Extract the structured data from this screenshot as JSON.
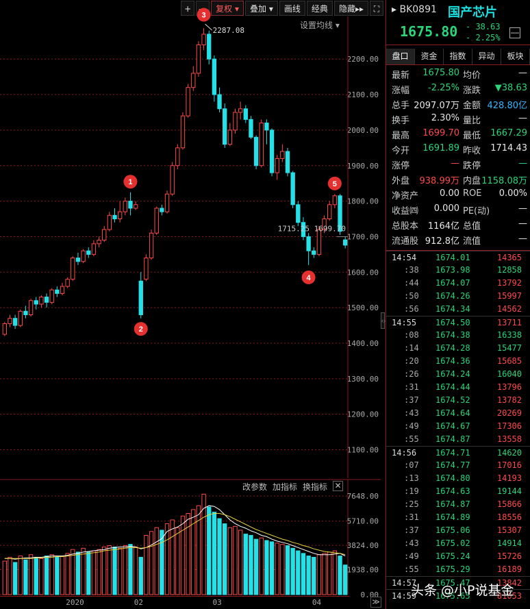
{
  "toolbar": {
    "plus": "+",
    "minus": "—",
    "fuquan": "复权",
    "diejia": "叠加",
    "huaxian": "画线",
    "jingdian": "经典",
    "yincang": "隐藏",
    "fullscreen": "⛶"
  },
  "setup_ma": "设置均线",
  "indicator_bar": {
    "params": "改参数",
    "add": "加指标",
    "switch": "换指标",
    "close": "✕"
  },
  "scroll_btn": "≫",
  "watermark": "头条 @小P说基金",
  "quote": {
    "code": "BK0891",
    "name": "国产芯片",
    "price": "1675.80",
    "change": "- 38.63",
    "change_pct": "- 2.25%",
    "minimize": "—",
    "tabs": [
      "盘口",
      "资金",
      "指数",
      "异动",
      "板块"
    ],
    "stats": [
      {
        "l1": "最新",
        "v1": "1675.80",
        "c1": "green",
        "l2": "均价",
        "v2": "—",
        "c2": "white"
      },
      {
        "l1": "涨幅",
        "v1": "-2.25%",
        "c1": "green",
        "l2": "涨跌",
        "v2": "▼38.63",
        "c2": "green"
      },
      {
        "l1": "总手",
        "v1": "2097.07万",
        "c1": "white",
        "l2": "金额",
        "v2": "428.80亿",
        "c2": "cyan"
      },
      {
        "l1": "换手",
        "v1": "2.30%",
        "c1": "white",
        "l2": "量比",
        "v2": "—",
        "c2": "white"
      },
      {
        "l1": "最高",
        "v1": "1699.70",
        "c1": "red",
        "l2": "最低",
        "v2": "1667.29",
        "c2": "green"
      },
      {
        "l1": "今开",
        "v1": "1691.89",
        "c1": "green",
        "l2": "昨收",
        "v2": "1714.43",
        "c2": "white"
      },
      {
        "l1": "涨停",
        "v1": "—",
        "c1": "red",
        "l2": "跌停",
        "v2": "—",
        "c2": "green"
      },
      {
        "l1": "外盘",
        "v1": "938.99万",
        "c1": "red",
        "l2": "内盘",
        "v2": "1158.08万",
        "c2": "green"
      },
      {
        "l1": "净资产",
        "v1": "0.00",
        "c1": "white",
        "l2": "ROE",
        "v2": "0.00%",
        "c2": "white"
      },
      {
        "l1": "收益㈣",
        "v1": "0.000",
        "c1": "white",
        "l2": "PE(动)",
        "v2": "—",
        "c2": "white"
      },
      {
        "l1": "总股本",
        "v1": "1164亿",
        "c1": "white",
        "l2": "总值",
        "v2": "—",
        "c2": "white"
      },
      {
        "l1": "流通股",
        "v1": "912.8亿",
        "c1": "white",
        "l2": "流值",
        "v2": "—",
        "c2": "white"
      }
    ],
    "ticks": [
      {
        "time": "14:54",
        "price": "1674.01",
        "vol": "14365",
        "c": "red",
        "minute": true
      },
      {
        "time": ":38",
        "price": "1673.98",
        "vol": "12858",
        "c": "green"
      },
      {
        "time": ":44",
        "price": "1674.07",
        "vol": "13792",
        "c": "red"
      },
      {
        "time": ":50",
        "price": "1674.26",
        "vol": "15997",
        "c": "red"
      },
      {
        "time": ":56",
        "price": "1674.34",
        "vol": "14562",
        "c": "red"
      },
      {
        "time": "14:55",
        "price": "1674.50",
        "vol": "13711",
        "c": "red",
        "minute": true
      },
      {
        "time": ":08",
        "price": "1674.38",
        "vol": "16338",
        "c": "green"
      },
      {
        "time": ":14",
        "price": "1674.28",
        "vol": "15477",
        "c": "green"
      },
      {
        "time": ":20",
        "price": "1674.36",
        "vol": "15685",
        "c": "red"
      },
      {
        "time": ":26",
        "price": "1674.24",
        "vol": "16040",
        "c": "green"
      },
      {
        "time": ":31",
        "price": "1674.44",
        "vol": "13796",
        "c": "red"
      },
      {
        "time": ":37",
        "price": "1674.52",
        "vol": "13782",
        "c": "red"
      },
      {
        "time": ":43",
        "price": "1674.64",
        "vol": "20269",
        "c": "red"
      },
      {
        "time": ":49",
        "price": "1674.67",
        "vol": "17306",
        "c": "red"
      },
      {
        "time": ":55",
        "price": "1674.87",
        "vol": "13558",
        "c": "red"
      },
      {
        "time": "14:56",
        "price": "1674.71",
        "vol": "14620",
        "c": "green",
        "minute": true
      },
      {
        "time": ":07",
        "price": "1674.77",
        "vol": "17016",
        "c": "red"
      },
      {
        "time": ":13",
        "price": "1674.80",
        "vol": "14193",
        "c": "red"
      },
      {
        "time": ":19",
        "price": "1674.63",
        "vol": "19144",
        "c": "green"
      },
      {
        "time": ":25",
        "price": "1674.87",
        "vol": "15866",
        "c": "red"
      },
      {
        "time": ":31",
        "price": "1674.89",
        "vol": "18556",
        "c": "red"
      },
      {
        "time": ":37",
        "price": "1675.06",
        "vol": "15307",
        "c": "red"
      },
      {
        "time": ":43",
        "price": "1675.02",
        "vol": "14914",
        "c": "green"
      },
      {
        "time": ":49",
        "price": "1675.24",
        "vol": "15726",
        "c": "red"
      },
      {
        "time": ":55",
        "price": "1675.29",
        "vol": "16189",
        "c": "red"
      },
      {
        "time": "14:57",
        "price": "1675.47",
        "vol": "13842",
        "c": "red",
        "minute": true
      },
      {
        "time": "14:59",
        "price": "1675.65",
        "vol": "81053",
        "c": "red",
        "minute": true
      }
    ]
  },
  "chart_data": {
    "type": "candlestick",
    "y_ticks": [
      2200,
      2100,
      2000,
      1900,
      1800,
      1700,
      1600,
      1500,
      1400,
      1300,
      1200,
      1100
    ],
    "y_tick_labels": [
      "2200.00",
      "2100.00",
      "2000.00",
      "1900.00",
      "1800.00",
      "1700.00",
      "1600.00",
      "1500.00",
      "1400.00",
      "1300.00",
      "1200.00",
      "1100.00"
    ],
    "ylim": [
      1020,
      2320
    ],
    "x_labels": [
      "2020",
      "02",
      "03",
      "04"
    ],
    "x_label_index": [
      13,
      26,
      41,
      60
    ],
    "high_label": "2287.08",
    "high_value": 2287.08,
    "high_index": 38,
    "crosshair_text": "1715.25 1699.70",
    "crosshair_value": 1715.25,
    "markers": [
      {
        "n": "1",
        "index": 24,
        "value": 1820,
        "side": "above"
      },
      {
        "n": "2",
        "index": 26,
        "value": 1475,
        "side": "below"
      },
      {
        "n": "3",
        "index": 38,
        "value": 2290,
        "side": "above"
      },
      {
        "n": "4",
        "index": 58,
        "value": 1620,
        "side": "below"
      },
      {
        "n": "5",
        "index": 63,
        "value": 1815,
        "side": "above"
      }
    ],
    "candles": [
      [
        1425,
        1455,
        1420,
        1460
      ],
      [
        1455,
        1470,
        1445,
        1480
      ],
      [
        1470,
        1450,
        1440,
        1480
      ],
      [
        1450,
        1490,
        1445,
        1495
      ],
      [
        1490,
        1480,
        1470,
        1505
      ],
      [
        1480,
        1520,
        1475,
        1525
      ],
      [
        1520,
        1510,
        1495,
        1530
      ],
      [
        1510,
        1530,
        1500,
        1535
      ],
      [
        1530,
        1515,
        1500,
        1540
      ],
      [
        1515,
        1550,
        1510,
        1555
      ],
      [
        1550,
        1540,
        1530,
        1560
      ],
      [
        1540,
        1560,
        1535,
        1570
      ],
      [
        1560,
        1580,
        1555,
        1585
      ],
      [
        1580,
        1640,
        1575,
        1645
      ],
      [
        1640,
        1630,
        1620,
        1655
      ],
      [
        1630,
        1660,
        1625,
        1665
      ],
      [
        1660,
        1650,
        1640,
        1670
      ],
      [
        1650,
        1680,
        1645,
        1690
      ],
      [
        1680,
        1690,
        1670,
        1700
      ],
      [
        1690,
        1720,
        1685,
        1730
      ],
      [
        1720,
        1760,
        1715,
        1770
      ],
      [
        1760,
        1750,
        1740,
        1780
      ],
      [
        1750,
        1770,
        1740,
        1800
      ],
      [
        1770,
        1800,
        1760,
        1810
      ],
      [
        1800,
        1780,
        1760,
        1825
      ],
      [
        1780,
        1790,
        1775,
        1800
      ],
      [
        1575,
        1480,
        1470,
        1600
      ],
      [
        1580,
        1640,
        1575,
        1650
      ],
      [
        1640,
        1710,
        1635,
        1720
      ],
      [
        1710,
        1780,
        1705,
        1785
      ],
      [
        1780,
        1770,
        1760,
        1790
      ],
      [
        1770,
        1820,
        1765,
        1830
      ],
      [
        1820,
        1900,
        1815,
        1910
      ],
      [
        1900,
        1950,
        1890,
        1960
      ],
      [
        1950,
        2040,
        1945,
        2050
      ],
      [
        2040,
        2120,
        2035,
        2130
      ],
      [
        2120,
        2160,
        2110,
        2180
      ],
      [
        2160,
        2240,
        2150,
        2250
      ],
      [
        2240,
        2270,
        2225,
        2287
      ],
      [
        2270,
        2200,
        2185,
        2280
      ],
      [
        2200,
        2100,
        2080,
        2210
      ],
      [
        2100,
        2060,
        2050,
        2120
      ],
      [
        2060,
        1960,
        1950,
        2075
      ],
      [
        1960,
        2000,
        1955,
        2020
      ],
      [
        2000,
        2050,
        1990,
        2060
      ],
      [
        2050,
        2060,
        2030,
        2080
      ],
      [
        2060,
        2030,
        2020,
        2070
      ],
      [
        2030,
        1980,
        1975,
        2040
      ],
      [
        1980,
        1900,
        1890,
        1985
      ],
      [
        1900,
        2020,
        1895,
        2030
      ],
      [
        2020,
        2000,
        1960,
        2030
      ],
      [
        2000,
        1880,
        1870,
        2005
      ],
      [
        1880,
        1920,
        1860,
        1930
      ],
      [
        1920,
        1940,
        1910,
        1960
      ],
      [
        1940,
        1880,
        1870,
        1950
      ],
      [
        1880,
        1790,
        1780,
        1885
      ],
      [
        1790,
        1740,
        1730,
        1800
      ],
      [
        1740,
        1700,
        1690,
        1755
      ],
      [
        1700,
        1660,
        1620,
        1710
      ],
      [
        1660,
        1650,
        1640,
        1670
      ],
      [
        1650,
        1720,
        1645,
        1730
      ],
      [
        1720,
        1750,
        1710,
        1760
      ],
      [
        1750,
        1790,
        1745,
        1800
      ],
      [
        1790,
        1815,
        1780,
        1820
      ],
      [
        1815,
        1715,
        1705,
        1820
      ],
      [
        1691,
        1676,
        1667,
        1700
      ]
    ],
    "volume_ticks": [
      7648.0,
      5710.0,
      3824.0,
      1938.0,
      0.0
    ],
    "volume_tick_labels": [
      "7648.00",
      "5710.00",
      "3824.00",
      "1938.00",
      "0.00"
    ],
    "volumes": [
      2600,
      2900,
      2500,
      3000,
      2700,
      3100,
      2900,
      2800,
      3000,
      3100,
      2900,
      3000,
      3200,
      3500,
      3300,
      3600,
      3300,
      3400,
      3500,
      3700,
      3800,
      3700,
      3600,
      3800,
      3900,
      3700,
      2900,
      4600,
      4900,
      5200,
      5000,
      5500,
      5800,
      5200,
      6100,
      6300,
      6600,
      6900,
      7800,
      6800,
      6400,
      5900,
      5500,
      5200,
      5300,
      5000,
      4700,
      4600,
      4300,
      4400,
      4200,
      4100,
      4000,
      3900,
      3800,
      3600,
      3400,
      3200,
      3000,
      2900,
      3100,
      3200,
      3300,
      3400,
      3000,
      2300
    ],
    "ma5": [
      2800,
      2800,
      2750,
      2800,
      2850,
      2850,
      2900,
      2900,
      2950,
      3000,
      3000,
      3000,
      3050,
      3150,
      3200,
      3300,
      3350,
      3400,
      3450,
      3500,
      3600,
      3650,
      3700,
      3700,
      3750,
      3700,
      3550,
      3650,
      3850,
      4100,
      4350,
      4900,
      5100,
      5250,
      5500,
      5850,
      6000,
      6200,
      6700,
      6900,
      6850,
      6600,
      6200,
      5800,
      5500,
      5300,
      5150,
      4950,
      4800,
      4600,
      4500,
      4300,
      4150,
      4050,
      3950,
      3800,
      3650,
      3500,
      3350,
      3200,
      3100,
      3100,
      3100,
      3150,
      3200,
      3000
    ],
    "ma10": [
      2800,
      2800,
      2800,
      2800,
      2800,
      2800,
      2850,
      2850,
      2900,
      2900,
      2950,
      2950,
      3000,
      3050,
      3100,
      3150,
      3200,
      3250,
      3300,
      3400,
      3450,
      3500,
      3550,
      3600,
      3650,
      3650,
      3600,
      3650,
      3750,
      3900,
      4050,
      4250,
      4500,
      4750,
      5000,
      5250,
      5500,
      5750,
      6000,
      6200,
      6300,
      6300,
      6200,
      6050,
      5850,
      5650,
      5450,
      5250,
      5050,
      4900,
      4750,
      4600,
      4450,
      4300,
      4200,
      4050,
      3950,
      3800,
      3700,
      3550,
      3450,
      3350,
      3300,
      3250,
      3200,
      3100
    ]
  }
}
